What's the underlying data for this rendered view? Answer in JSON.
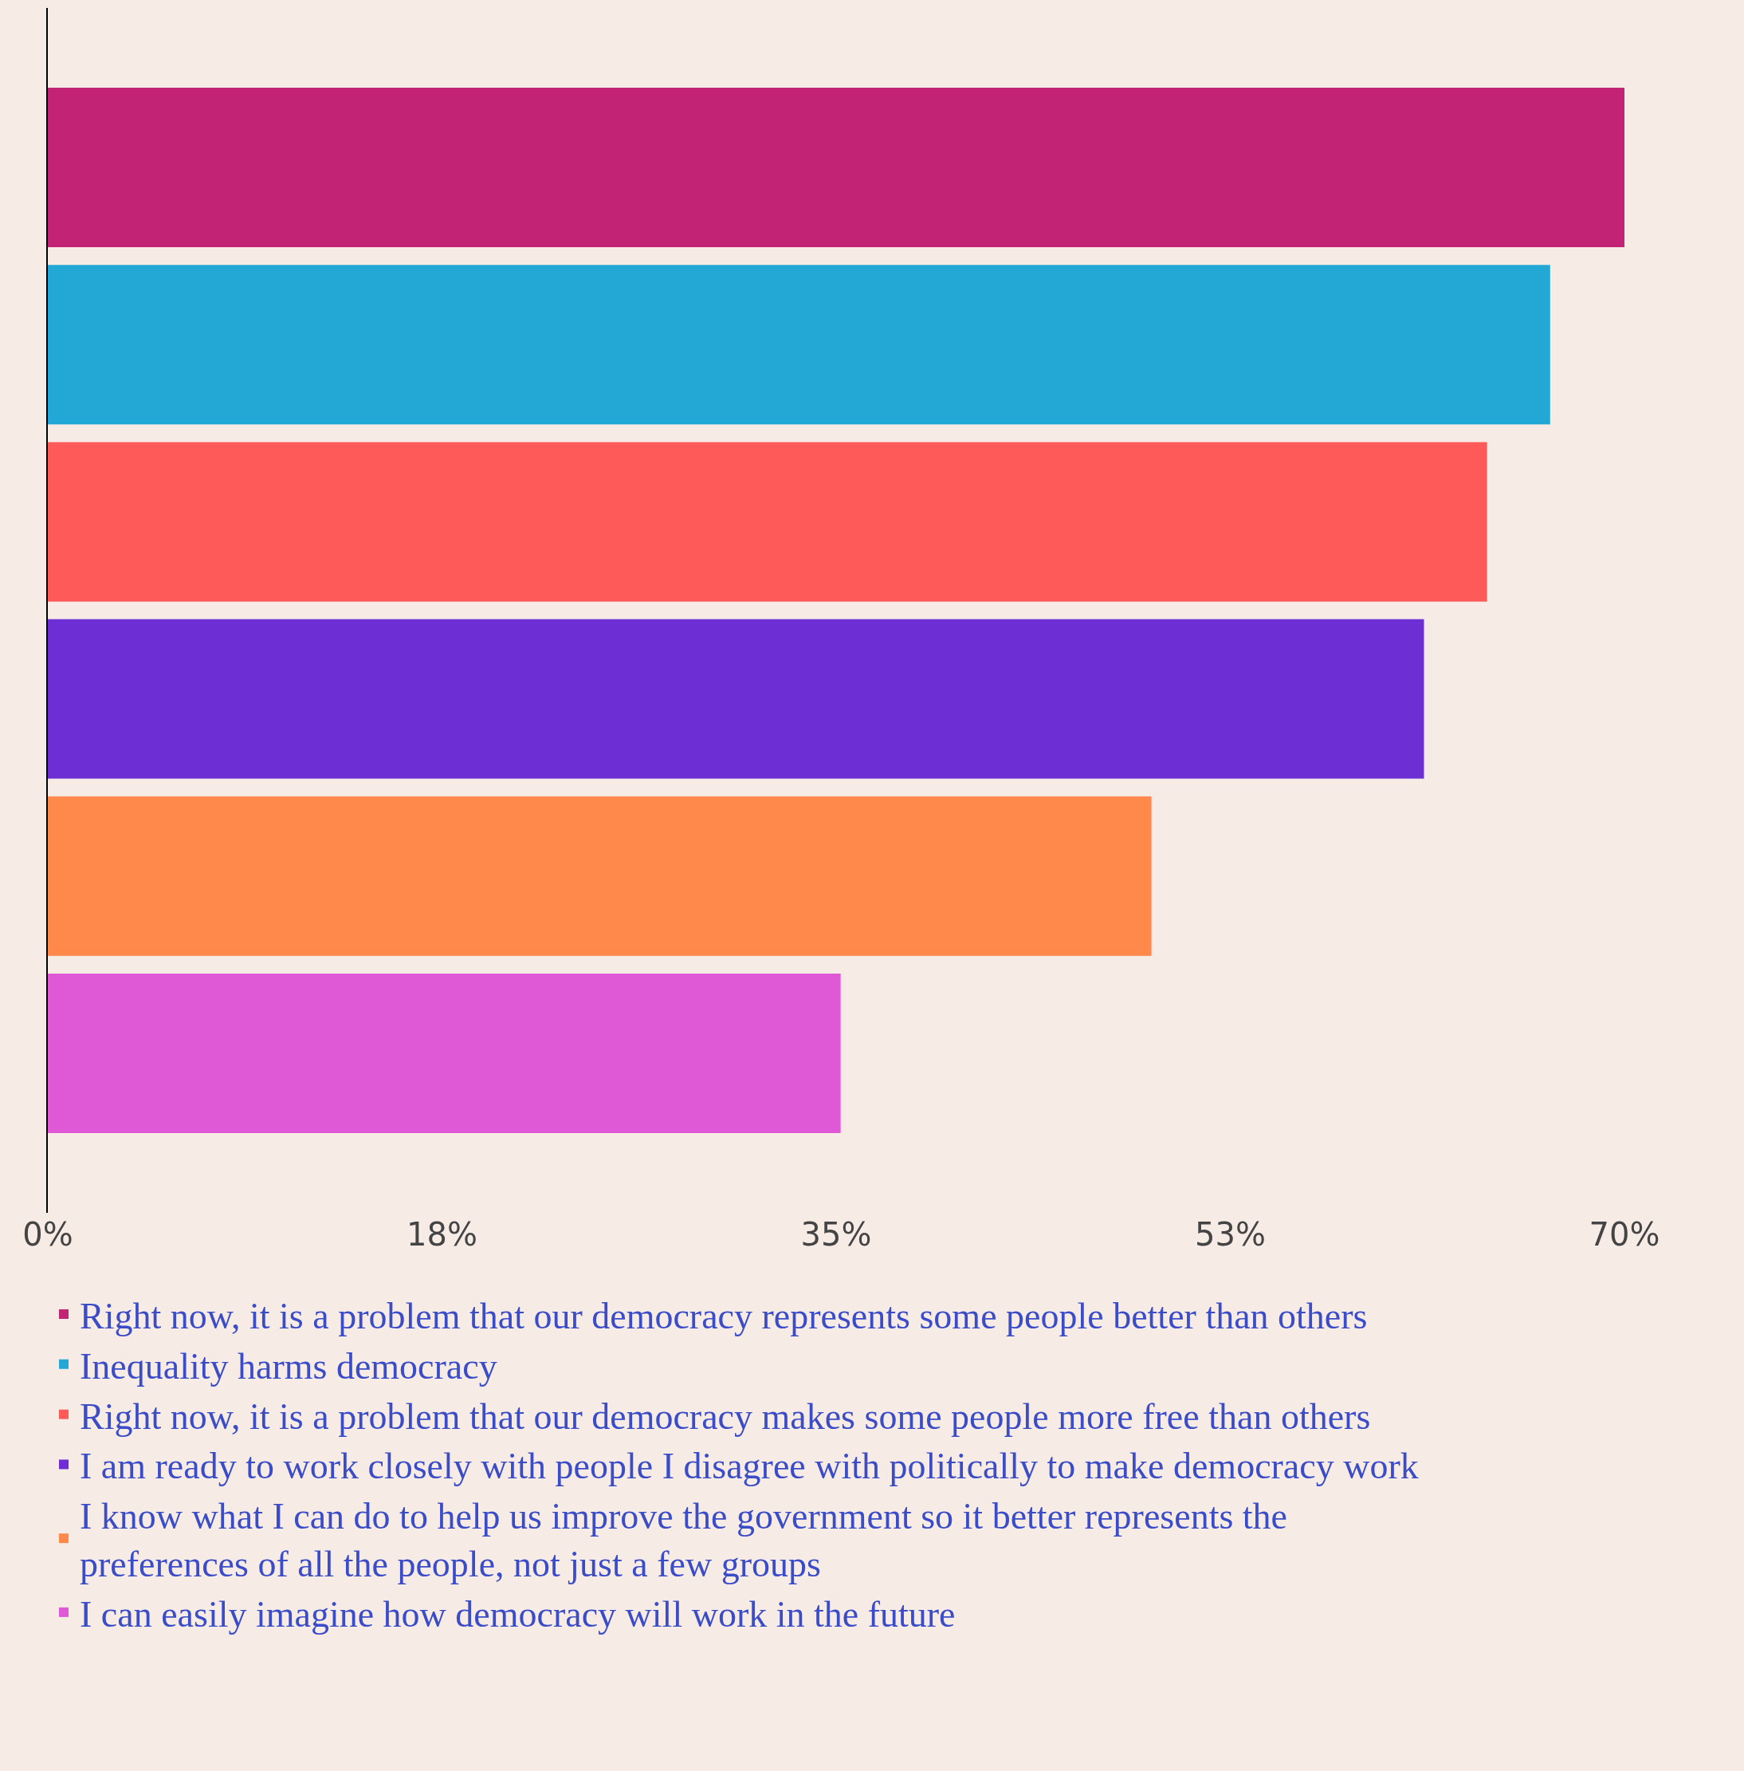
{
  "chart_data": {
    "type": "bar",
    "orientation": "horizontal",
    "categories": [
      null,
      null,
      null,
      null,
      null,
      null
    ],
    "series": [
      {
        "name": "Right now, it is a problem that our democracy represents some people better than others",
        "color": "#c22374",
        "values": [
          70,
          null,
          null,
          null,
          null,
          null
        ]
      },
      {
        "name": "Inequality harms democracy",
        "color": "#23a8d6",
        "values": [
          null,
          66.7,
          null,
          null,
          null,
          null
        ]
      },
      {
        "name": "Right now, it is a problem that our democracy makes some people more free than others",
        "color": "#ff5a5a",
        "values": [
          null,
          null,
          63.9,
          null,
          null,
          null
        ]
      },
      {
        "name": "I am ready to work closely with people I disagree with politically to make democracy work",
        "color": "#6d2fd3",
        "values": [
          null,
          null,
          null,
          61.1,
          null,
          null
        ]
      },
      {
        "name": "I know what I can do to help us improve the government so it better represents the preferences of all the people, not just a few groups",
        "color": "#ff884a",
        "values": [
          null,
          null,
          null,
          null,
          49.0,
          null
        ]
      },
      {
        "name": "I can easily imagine how democracy will work in the future",
        "color": "#df58d6",
        "values": [
          null,
          null,
          null,
          null,
          null,
          35.2
        ]
      }
    ],
    "xlim": [
      0,
      70
    ],
    "xticks": [
      {
        "value": 0,
        "label": "0%"
      },
      {
        "value": 17.5,
        "label": "18%"
      },
      {
        "value": 35,
        "label": "35%"
      },
      {
        "value": 52.5,
        "label": "53%"
      },
      {
        "value": 70,
        "label": "70%"
      }
    ],
    "grid": false,
    "legend": "bottom"
  }
}
